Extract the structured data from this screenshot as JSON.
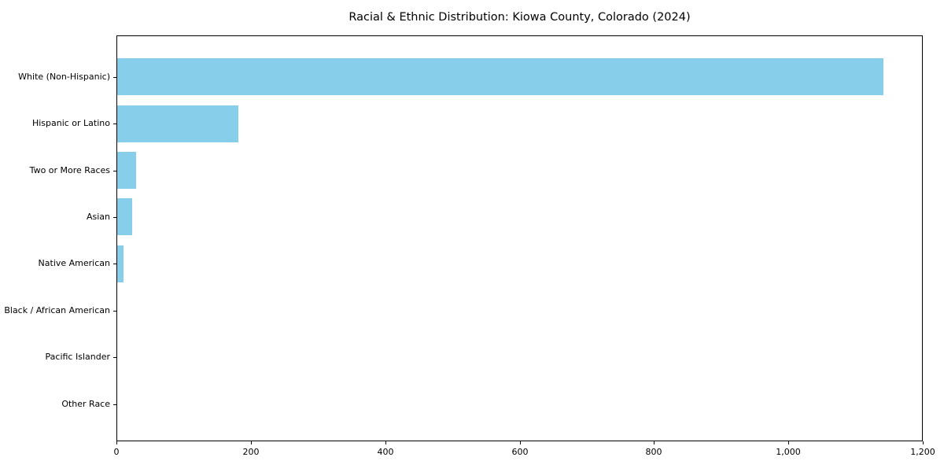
{
  "title": "Racial & Ethnic Distribution: Kiowa County, Colorado (2024)",
  "chart_data": {
    "type": "bar",
    "orientation": "horizontal",
    "title": "Racial & Ethnic Distribution: Kiowa County, Colorado (2024)",
    "xlabel": "",
    "ylabel": "",
    "categories": [
      "White (Non-Hispanic)",
      "Hispanic or Latino",
      "Two or More Races",
      "Asian",
      "Native American",
      "Black / African American",
      "Pacific Islander",
      "Other Race"
    ],
    "values": [
      1140,
      180,
      28,
      22,
      9,
      0,
      0,
      0
    ],
    "xlim": [
      0,
      1200
    ],
    "x_ticks": [
      0,
      200,
      400,
      600,
      800,
      1000,
      1200
    ],
    "x_tick_labels": [
      "0",
      "200",
      "400",
      "600",
      "800",
      "1,000",
      "1,200"
    ],
    "bar_color": "#87CEEB",
    "grid": false,
    "legend_position": "none",
    "background_color": "#ffffff",
    "spine_color": "#000000"
  }
}
